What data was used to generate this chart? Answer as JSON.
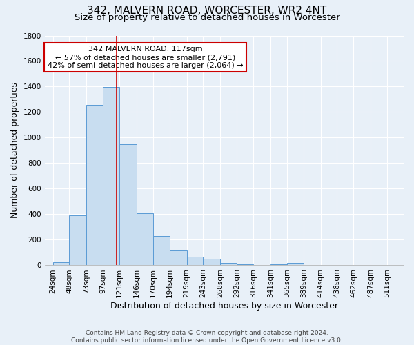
{
  "title": "342, MALVERN ROAD, WORCESTER, WR2 4NT",
  "subtitle": "Size of property relative to detached houses in Worcester",
  "xlabel": "Distribution of detached houses by size in Worcester",
  "ylabel": "Number of detached properties",
  "footer_line1": "Contains HM Land Registry data © Crown copyright and database right 2024.",
  "footer_line2": "Contains public sector information licensed under the Open Government Licence v3.0.",
  "annotation_line1": "342 MALVERN ROAD: 117sqm",
  "annotation_line2": "← 57% of detached houses are smaller (2,791)",
  "annotation_line3": "42% of semi-detached houses are larger (2,064) →",
  "bar_left_edges": [
    24,
    48,
    73,
    97,
    121,
    146,
    170,
    194,
    219,
    243,
    268,
    292,
    316,
    341,
    365,
    389,
    414,
    438,
    462,
    487
  ],
  "bar_widths": [
    24,
    25,
    24,
    24,
    25,
    24,
    24,
    25,
    24,
    25,
    24,
    24,
    25,
    24,
    24,
    25,
    24,
    24,
    25,
    24
  ],
  "bar_heights": [
    25,
    390,
    1255,
    1395,
    950,
    410,
    228,
    115,
    67,
    50,
    20,
    10,
    5,
    10,
    20,
    5,
    0,
    0,
    0,
    0
  ],
  "tick_labels": [
    "24sqm",
    "48sqm",
    "73sqm",
    "97sqm",
    "121sqm",
    "146sqm",
    "170sqm",
    "194sqm",
    "219sqm",
    "243sqm",
    "268sqm",
    "292sqm",
    "316sqm",
    "341sqm",
    "365sqm",
    "389sqm",
    "414sqm",
    "438sqm",
    "462sqm",
    "487sqm",
    "511sqm"
  ],
  "tick_positions": [
    24,
    48,
    73,
    97,
    121,
    146,
    170,
    194,
    219,
    243,
    268,
    292,
    316,
    341,
    365,
    389,
    414,
    438,
    462,
    487,
    511
  ],
  "bar_fill_color": "#c8ddf0",
  "bar_edge_color": "#5b9bd5",
  "vline_color": "#cc0000",
  "vline_x": 117,
  "background_color": "#e8f0f8",
  "plot_bg_color": "#e8f0f8",
  "grid_color": "#ffffff",
  "ylim": [
    0,
    1800
  ],
  "xlim": [
    12,
    535
  ],
  "annotation_box_color": "#ffffff",
  "annotation_box_edgecolor": "#cc0000",
  "title_fontsize": 11,
  "subtitle_fontsize": 9.5,
  "axis_label_fontsize": 9,
  "tick_fontsize": 7.5,
  "annotation_fontsize": 8,
  "footer_fontsize": 6.5
}
